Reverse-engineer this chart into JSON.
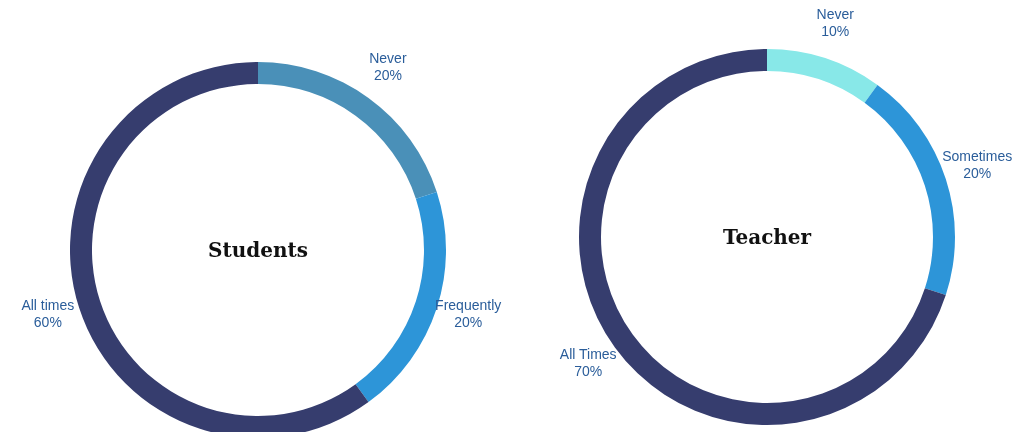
{
  "chart_data": [
    {
      "type": "donut",
      "title": "Students",
      "categories": [
        "Never",
        "Frequently",
        "All times"
      ],
      "values": [
        20,
        20,
        60
      ],
      "value_labels": [
        "20%",
        "20%",
        "60%"
      ],
      "colors": [
        "#4a90b8",
        "#2d95d8",
        "#363d6e"
      ]
    },
    {
      "type": "donut",
      "title": "Teacher",
      "categories": [
        "Never",
        "Sometimes",
        "All Times"
      ],
      "values": [
        10,
        20,
        70
      ],
      "value_labels": [
        "10%",
        "20%",
        "70%"
      ],
      "colors": [
        "#88e8e8",
        "#2d95d8",
        "#363d6e"
      ]
    }
  ]
}
